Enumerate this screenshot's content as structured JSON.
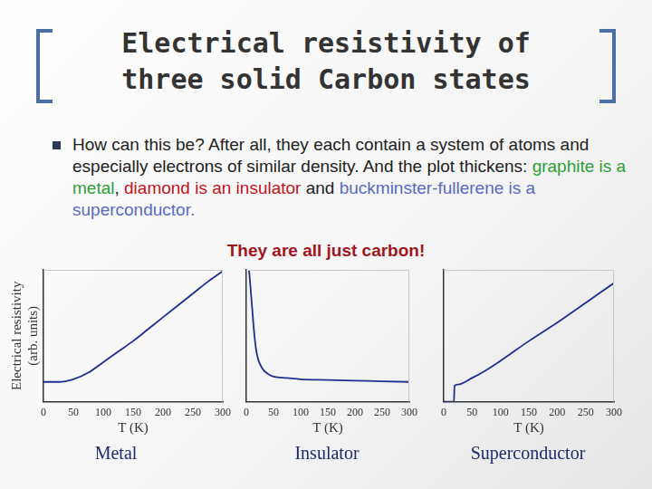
{
  "slide": {
    "title": [
      "Electrical resistivity of",
      "three solid Carbon states"
    ],
    "bullet": [
      {
        "text": "How can this be? After all, they each contain a system of atoms and especially electrons of similar density. And the plot thickens: ",
        "color": "#222222"
      },
      {
        "text": "graphite is a metal",
        "color": "#2e9e3a"
      },
      {
        "text": ", ",
        "color": "#222222"
      },
      {
        "text": "diamond is an insulator",
        "color": "#c0141e"
      },
      {
        "text": " and ",
        "color": "#222222"
      },
      {
        "text": "buckminster-fullerene is a superconductor",
        "color": "#5a6ac0"
      },
      {
        "text": ".",
        "color": "#5a6ac0"
      }
    ],
    "tagline": {
      "text": "They are all just carbon!",
      "color": "#a0141e"
    }
  },
  "chart_data": [
    {
      "type": "line",
      "title": "Metal",
      "x_label": "T (K)",
      "y_label": [
        "Electrical resistivity",
        "(arb. units)"
      ],
      "x": [
        0,
        25,
        50,
        75,
        100,
        125,
        150,
        175,
        200,
        225,
        250,
        275,
        300
      ],
      "values": [
        0.15,
        0.15,
        0.17,
        0.22,
        0.3,
        0.38,
        0.46,
        0.55,
        0.64,
        0.73,
        0.82,
        0.91,
        0.99
      ],
      "xlim": [
        0,
        300
      ],
      "xticks": [
        0,
        50,
        100,
        150,
        200,
        250,
        300
      ],
      "ylim": [
        0,
        1
      ],
      "tick_labels": "x",
      "grid": false,
      "color": "#1f2d8f"
    },
    {
      "type": "line",
      "title": "Insulator",
      "x_label": "T (K)",
      "x": [
        5,
        10,
        15,
        20,
        30,
        40,
        50,
        75,
        100,
        150,
        200,
        250,
        300
      ],
      "values": [
        1.0,
        0.75,
        0.5,
        0.35,
        0.25,
        0.21,
        0.19,
        0.18,
        0.17,
        0.165,
        0.16,
        0.155,
        0.15
      ],
      "xlim": [
        0,
        300
      ],
      "xticks": [
        0,
        50,
        100,
        150,
        200,
        250,
        300
      ],
      "ylim": [
        0,
        1
      ],
      "tick_labels": "x",
      "grid": false,
      "color": "#1f2d8f"
    },
    {
      "type": "line",
      "title": "Superconductor",
      "x_label": "T (K)",
      "x": [
        0,
        10,
        18,
        19,
        25,
        50,
        75,
        100,
        150,
        200,
        250,
        300
      ],
      "values": [
        0,
        0,
        0,
        0.12,
        0.13,
        0.18,
        0.24,
        0.31,
        0.46,
        0.6,
        0.75,
        0.9
      ],
      "xlim": [
        0,
        300
      ],
      "xticks": [
        0,
        50,
        100,
        150,
        200,
        250,
        300
      ],
      "ylim": [
        0,
        1
      ],
      "tick_labels": "x",
      "grid": false,
      "color": "#1f2d8f"
    }
  ]
}
